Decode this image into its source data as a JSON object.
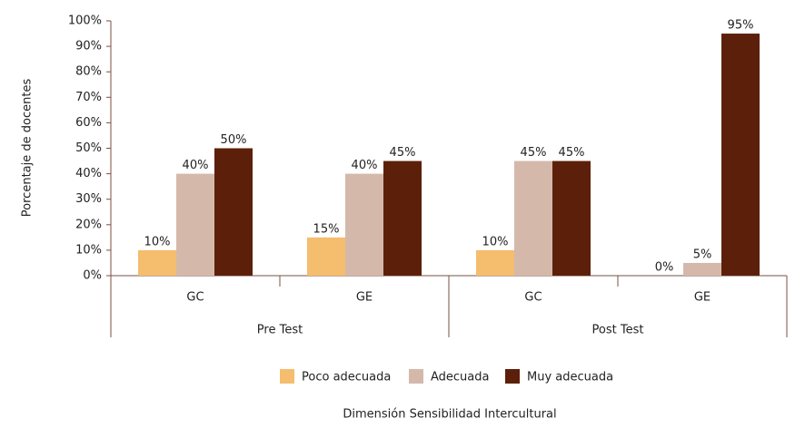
{
  "chart_data": {
    "type": "bar",
    "y_label": "Porcentaje de docentes",
    "x_label": "Dimensión Sensibilidad Intercultural",
    "categories": [
      "GC",
      "GE",
      "GC",
      "GE"
    ],
    "groups": [
      "Pre Test",
      "Post Test"
    ],
    "series": [
      {
        "name": "Poco adecuada",
        "color": "#f5bd6e",
        "values": [
          10,
          15,
          10,
          0
        ],
        "value_labels": [
          "10%",
          "15%",
          "10%",
          "0%"
        ]
      },
      {
        "name": "Adecuada",
        "color": "#d4b9ab",
        "values": [
          40,
          40,
          45,
          5
        ],
        "value_labels": [
          "40%",
          "40%",
          "45%",
          "5%"
        ]
      },
      {
        "name": "Muy adecuada",
        "color": "#5c200a",
        "values": [
          50,
          45,
          45,
          95
        ],
        "value_labels": [
          "50%",
          "45%",
          "45%",
          "95%"
        ]
      }
    ],
    "ylim": [
      0,
      100
    ],
    "yticks": [
      {
        "value": 0,
        "label": "0%"
      },
      {
        "value": 10,
        "label": "10%"
      },
      {
        "value": 20,
        "label": "20%"
      },
      {
        "value": 30,
        "label": "30%"
      },
      {
        "value": 40,
        "label": "40%"
      },
      {
        "value": 50,
        "label": "50%"
      },
      {
        "value": 60,
        "label": "60%"
      },
      {
        "value": 70,
        "label": "70%"
      },
      {
        "value": 80,
        "label": "80%"
      },
      {
        "value": 90,
        "label": "90%"
      },
      {
        "value": 100,
        "label": "100%"
      }
    ],
    "legend": "bottom"
  }
}
